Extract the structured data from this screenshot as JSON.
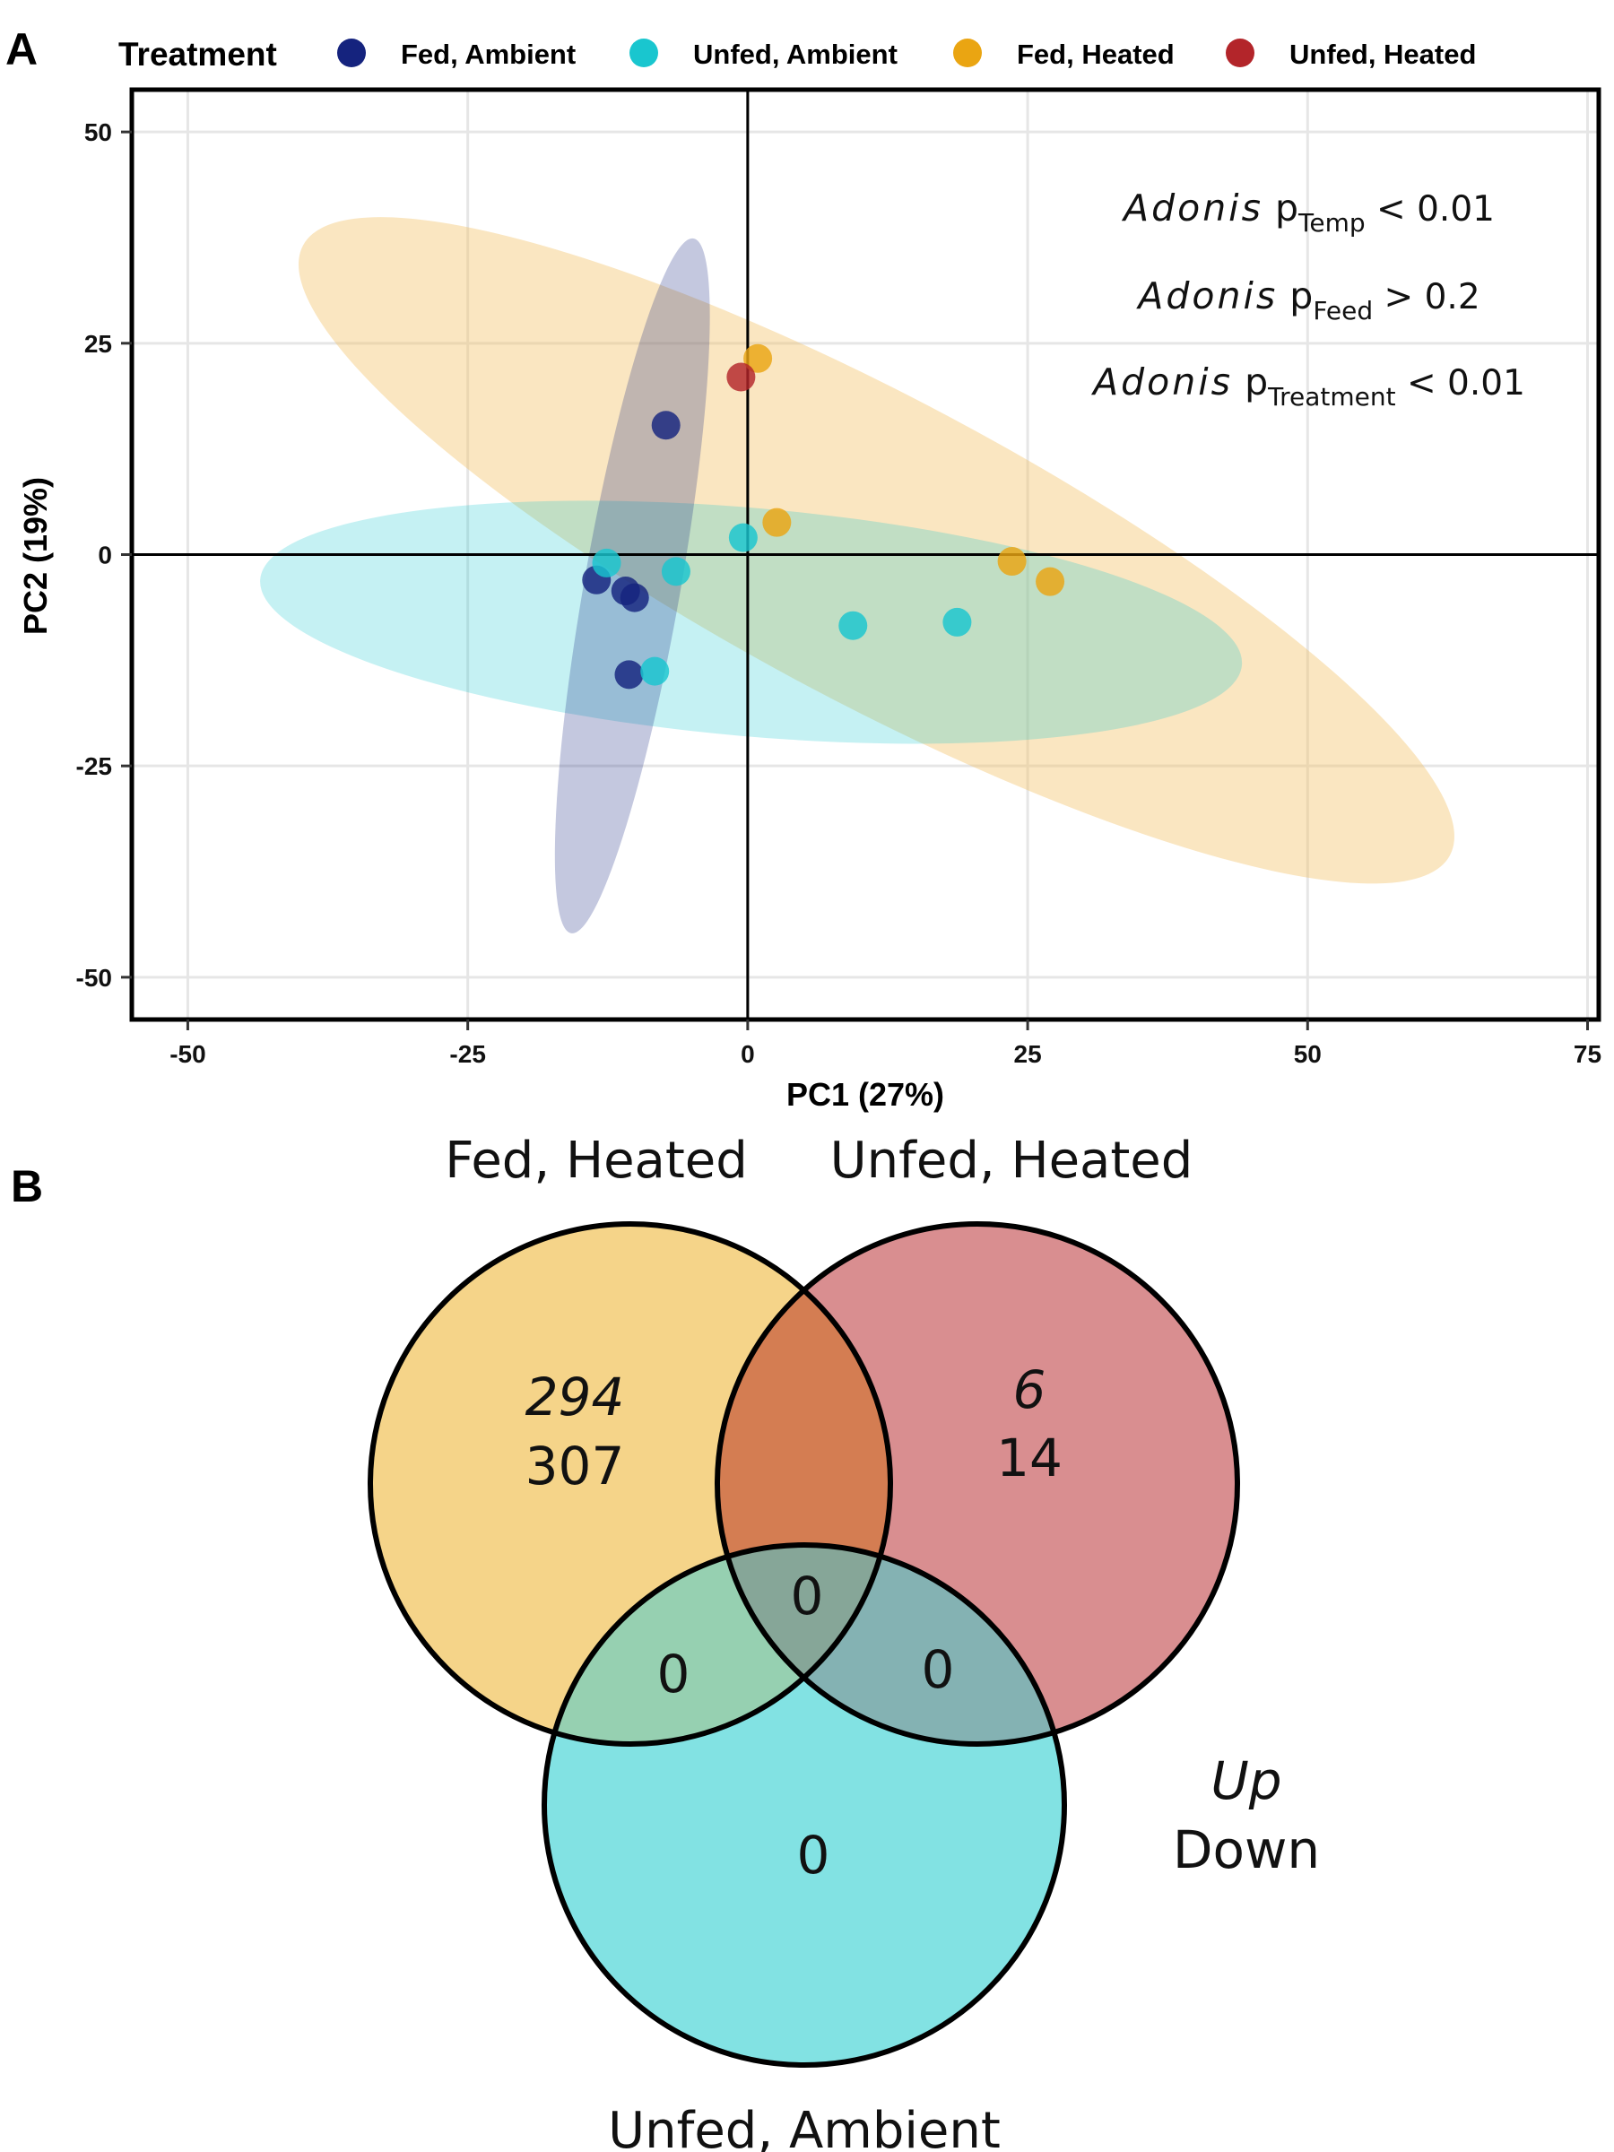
{
  "panel_labels": {
    "a": "A",
    "b": "B"
  },
  "legend": {
    "title": "Treatment",
    "items": [
      {
        "label": "Fed, Ambient",
        "color": "#15237e"
      },
      {
        "label": "Unfed, Ambient",
        "color": "#19c6cf"
      },
      {
        "label": "Fed, Heated",
        "color": "#eaa512"
      },
      {
        "label": "Unfed, Heated",
        "color": "#b3252a"
      }
    ]
  },
  "chart_data": [
    {
      "type": "scatter",
      "xlabel": "PC1 (27%)",
      "ylabel": "PC2 (19%)",
      "xlim": [
        -55,
        76
      ],
      "ylim": [
        -55,
        55
      ],
      "xticks": [
        "-50",
        "-25",
        "0",
        "25",
        "50",
        "75"
      ],
      "yticks": [
        "50",
        "25",
        "0",
        "-25",
        "-50"
      ],
      "grid": true,
      "legend_position": "top",
      "annotations": [
        {
          "italic": "Adonis",
          "p": "p",
          "sub": "Temp",
          "rest": " < 0.01"
        },
        {
          "italic": "Adonis",
          "p": "p",
          "sub": "Feed",
          "rest": " > 0.2"
        },
        {
          "italic": "Adonis",
          "p": "p",
          "sub": "Treatment",
          "rest": " < 0.01"
        }
      ],
      "series": [
        {
          "name": "Fed, Ambient",
          "color": "#15237e",
          "points": [
            [
              -7.3,
              15.3
            ],
            [
              -13.5,
              -3.0
            ],
            [
              -10.9,
              -4.3
            ],
            [
              -10.1,
              -5.1
            ],
            [
              -10.6,
              -14.2
            ]
          ]
        },
        {
          "name": "Unfed, Ambient",
          "color": "#19c6cf",
          "points": [
            [
              -12.6,
              -1.0
            ],
            [
              -6.4,
              -2.0
            ],
            [
              -8.3,
              -13.8
            ],
            [
              -0.4,
              2.0
            ],
            [
              9.4,
              -8.4
            ],
            [
              18.7,
              -8.0
            ]
          ]
        },
        {
          "name": "Fed, Heated",
          "color": "#eaa512",
          "points": [
            [
              0.9,
              23.2
            ],
            [
              2.6,
              3.8
            ],
            [
              23.6,
              -0.8
            ],
            [
              27.0,
              -3.2
            ]
          ]
        },
        {
          "name": "Unfed, Heated",
          "color": "#b3252a",
          "points": [
            [
              -0.6,
              21.0
            ]
          ]
        }
      ],
      "ellipses": [
        {
          "series": "Fed, Heated",
          "color": "#f3c064",
          "opacity": 0.4,
          "cx": 11.5,
          "cy": 0.5,
          "rx": 58,
          "ry": 18,
          "angle": 28
        },
        {
          "series": "Unfed, Ambient",
          "color": "#19c6cf",
          "opacity": 0.25,
          "cx": 0.3,
          "cy": -8,
          "rx": 44,
          "ry": 13.5,
          "angle": 5
        },
        {
          "series": "Fed, Ambient",
          "color": "#15237e",
          "opacity": 0.25,
          "cx": -10.3,
          "cy": -3.7,
          "rx": 31.5,
          "ry": 5.7,
          "angle": -80
        }
      ]
    },
    {
      "type": "venn",
      "sets": [
        "Fed, Heated",
        "Unfed, Heated",
        "Unfed, Ambient"
      ],
      "regions": {
        "fed_heated_only": {
          "up": "294",
          "down": "307"
        },
        "unfed_heated_only": {
          "up": "6",
          "down": "14"
        },
        "fed_unfed_heated": "",
        "center": "0",
        "fed_heated_unfed_ambient": "0",
        "unfed_heated_unfed_ambient": "0",
        "unfed_ambient_only": "0"
      },
      "key": {
        "up": "Up",
        "down": "Down"
      },
      "colors": {
        "fed_heated": "#f5d489",
        "unfed_heated": "#d98e90",
        "unfed_ambient": "#82e2e3",
        "fh_uh": "#d47d52",
        "fh_ua": "#96d0b1",
        "uh_ua": "#84b2b3",
        "center": "#86a698"
      }
    }
  ]
}
